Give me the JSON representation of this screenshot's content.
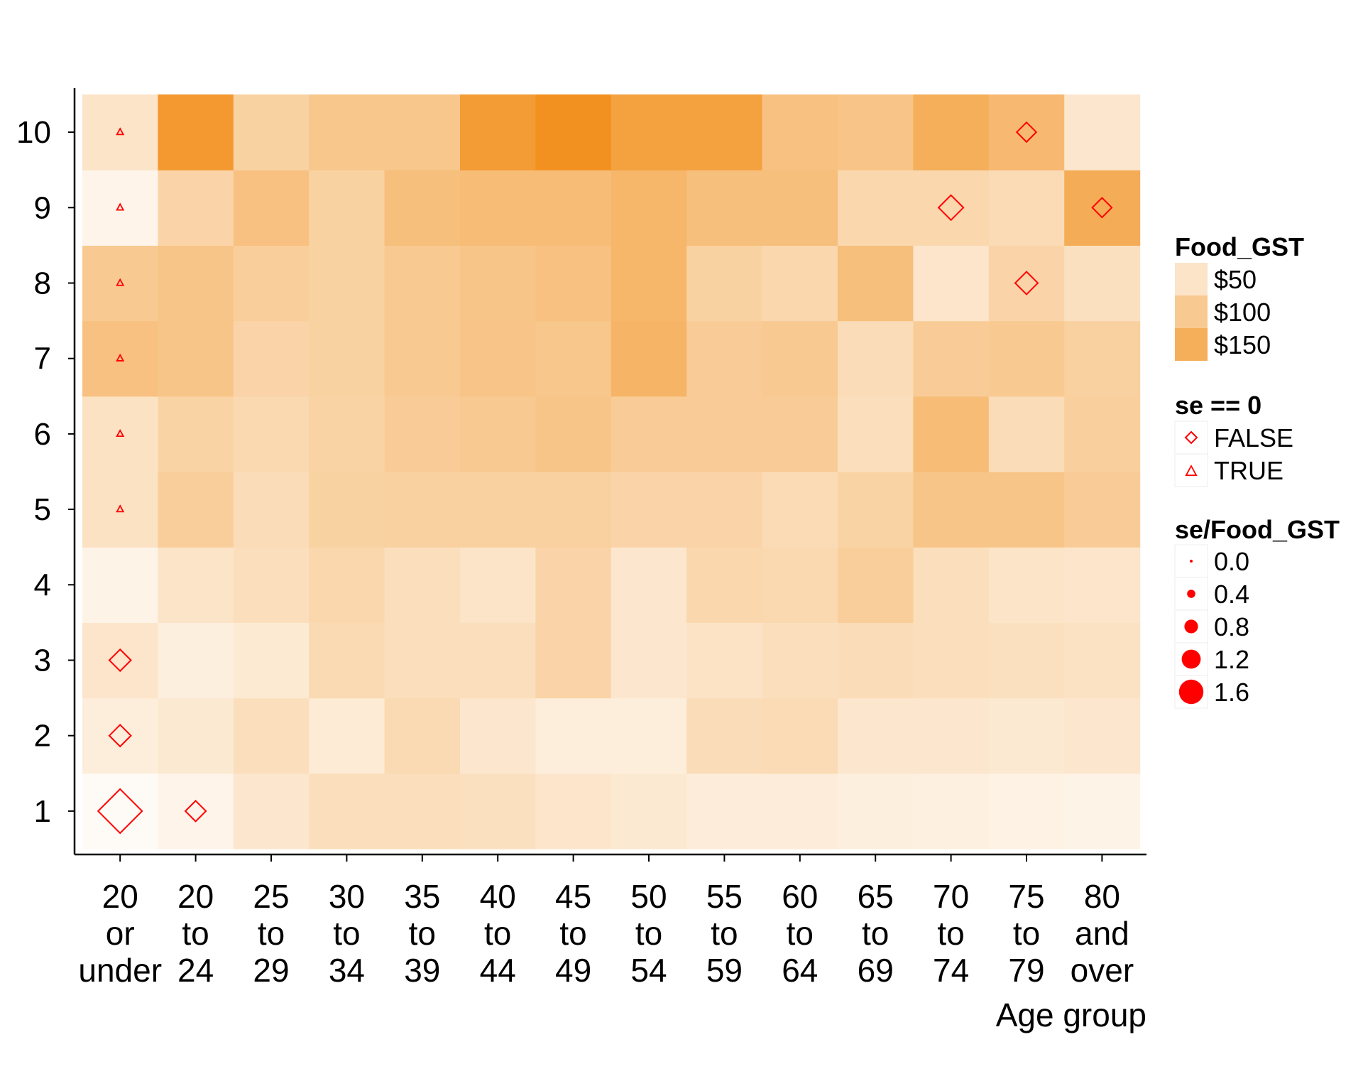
{
  "chart_data": {
    "type": "heatmap",
    "xlabel": "Age group",
    "ylabel": "",
    "x_categories": [
      [
        "20",
        "or",
        "under"
      ],
      [
        "20",
        "to",
        "24"
      ],
      [
        "25",
        "to",
        "29"
      ],
      [
        "30",
        "to",
        "34"
      ],
      [
        "35",
        "to",
        "39"
      ],
      [
        "40",
        "to",
        "44"
      ],
      [
        "45",
        "to",
        "49"
      ],
      [
        "50",
        "to",
        "54"
      ],
      [
        "55",
        "to",
        "59"
      ],
      [
        "60",
        "to",
        "64"
      ],
      [
        "65",
        "to",
        "69"
      ],
      [
        "70",
        "to",
        "74"
      ],
      [
        "75",
        "to",
        "79"
      ],
      [
        "80",
        "and",
        "over"
      ]
    ],
    "y_categories": [
      "1",
      "2",
      "3",
      "4",
      "5",
      "6",
      "7",
      "8",
      "9",
      "10"
    ],
    "fill_variable": "Food_GST",
    "fill_range": [
      0,
      215
    ],
    "fill_color_low": "#ffffff",
    "fill_color_high": "#f18c14",
    "values": [
      [
        8,
        20,
        45,
        60,
        60,
        58,
        48,
        42,
        35,
        35,
        30,
        28,
        25,
        22
      ],
      [
        32,
        42,
        60,
        38,
        70,
        45,
        32,
        32,
        65,
        68,
        45,
        45,
        42,
        45
      ],
      [
        48,
        30,
        40,
        70,
        62,
        62,
        80,
        45,
        52,
        60,
        65,
        60,
        58,
        55
      ],
      [
        22,
        50,
        62,
        75,
        60,
        50,
        80,
        45,
        75,
        72,
        92,
        62,
        50,
        48
      ],
      [
        55,
        92,
        65,
        85,
        88,
        88,
        88,
        80,
        80,
        68,
        82,
        108,
        108,
        95
      ],
      [
        55,
        82,
        72,
        82,
        95,
        100,
        108,
        95,
        95,
        95,
        62,
        125,
        65,
        90
      ],
      [
        115,
        108,
        80,
        85,
        100,
        110,
        105,
        140,
        95,
        100,
        65,
        95,
        100,
        88
      ],
      [
        100,
        108,
        92,
        85,
        100,
        108,
        115,
        135,
        85,
        75,
        120,
        48,
        80,
        58
      ],
      [
        20,
        80,
        115,
        85,
        120,
        125,
        125,
        135,
        120,
        120,
        75,
        75,
        68,
        155
      ],
      [
        50,
        190,
        85,
        105,
        105,
        185,
        205,
        175,
        175,
        115,
        110,
        150,
        130,
        45
      ]
    ],
    "points": [
      {
        "x": "20 or under",
        "y": "1",
        "se_zero": false,
        "ratio": 1.6
      },
      {
        "x": "20 to 24",
        "y": "1",
        "se_zero": false,
        "ratio": 0.5
      },
      {
        "x": "20 or under",
        "y": "2",
        "se_zero": false,
        "ratio": 0.55
      },
      {
        "x": "20 or under",
        "y": "3",
        "se_zero": false,
        "ratio": 0.55
      },
      {
        "x": "20 or under",
        "y": "5",
        "se_zero": true,
        "ratio": 0.0
      },
      {
        "x": "20 or under",
        "y": "6",
        "se_zero": true,
        "ratio": 0.0
      },
      {
        "x": "20 or under",
        "y": "7",
        "se_zero": true,
        "ratio": 0.0
      },
      {
        "x": "20 or under",
        "y": "8",
        "se_zero": true,
        "ratio": 0.0
      },
      {
        "x": "20 or under",
        "y": "9",
        "se_zero": true,
        "ratio": 0.0
      },
      {
        "x": "20 or under",
        "y": "10",
        "se_zero": true,
        "ratio": 0.0
      },
      {
        "x": "70 to 74",
        "y": "9",
        "se_zero": false,
        "ratio": 0.7
      },
      {
        "x": "80 and over",
        "y": "9",
        "se_zero": false,
        "ratio": 0.45
      },
      {
        "x": "75 to 79",
        "y": "8",
        "se_zero": false,
        "ratio": 0.6
      },
      {
        "x": "75 to 79",
        "y": "10",
        "se_zero": false,
        "ratio": 0.45
      }
    ],
    "point_color": "#ff0000",
    "legend": {
      "position": "right",
      "fill": {
        "title": "Food_GST",
        "entries": [
          {
            "label": "$50",
            "value": 50
          },
          {
            "label": "$100",
            "value": 100
          },
          {
            "label": "$150",
            "value": 150
          }
        ]
      },
      "shape": {
        "title": "se == 0",
        "entries": [
          {
            "label": "FALSE",
            "shape": "diamond"
          },
          {
            "label": "TRUE",
            "shape": "triangle"
          }
        ]
      },
      "size": {
        "title": "se/Food_GST",
        "entries": [
          {
            "label": "0.0",
            "value": 0.0
          },
          {
            "label": "0.4",
            "value": 0.4
          },
          {
            "label": "0.8",
            "value": 0.8
          },
          {
            "label": "1.2",
            "value": 1.2
          },
          {
            "label": "1.6",
            "value": 1.6
          }
        ]
      }
    },
    "grid": false
  }
}
